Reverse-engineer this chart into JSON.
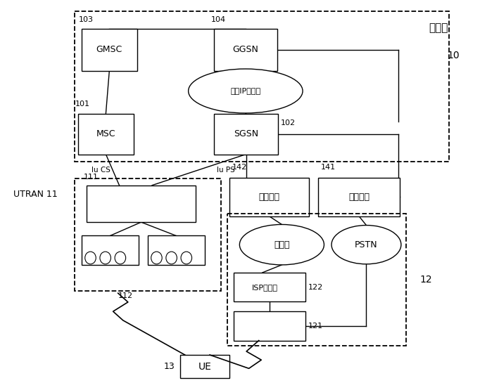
{
  "bg_color": "#ffffff",
  "fig_width": 7.09,
  "fig_height": 5.55,
  "labels": {
    "core_net": "核心网",
    "label_10": "10",
    "label_103": "103",
    "label_104": "104",
    "label_101": "101",
    "label_102": "102",
    "label_141": "141",
    "label_142": "142",
    "label_111": "111",
    "label_112": "112",
    "label_121": "121",
    "label_122": "122",
    "label_12": "12",
    "label_13": "13",
    "label_11": "UTRAN 11",
    "gmsc": "GMSC",
    "ggsn": "GGSN",
    "msc": "MSC",
    "sgsn": "SGSN",
    "ip_backbone": "专用IP主干网",
    "packet_gw": "分组网关",
    "circuit_gw": "电路网关",
    "internet": "互联网",
    "pstn": "PSTN",
    "isp_router": "ISP路由器",
    "ue_label": "UE",
    "iu_cs": "Iu CS",
    "iu_ps": "Iu PS"
  }
}
